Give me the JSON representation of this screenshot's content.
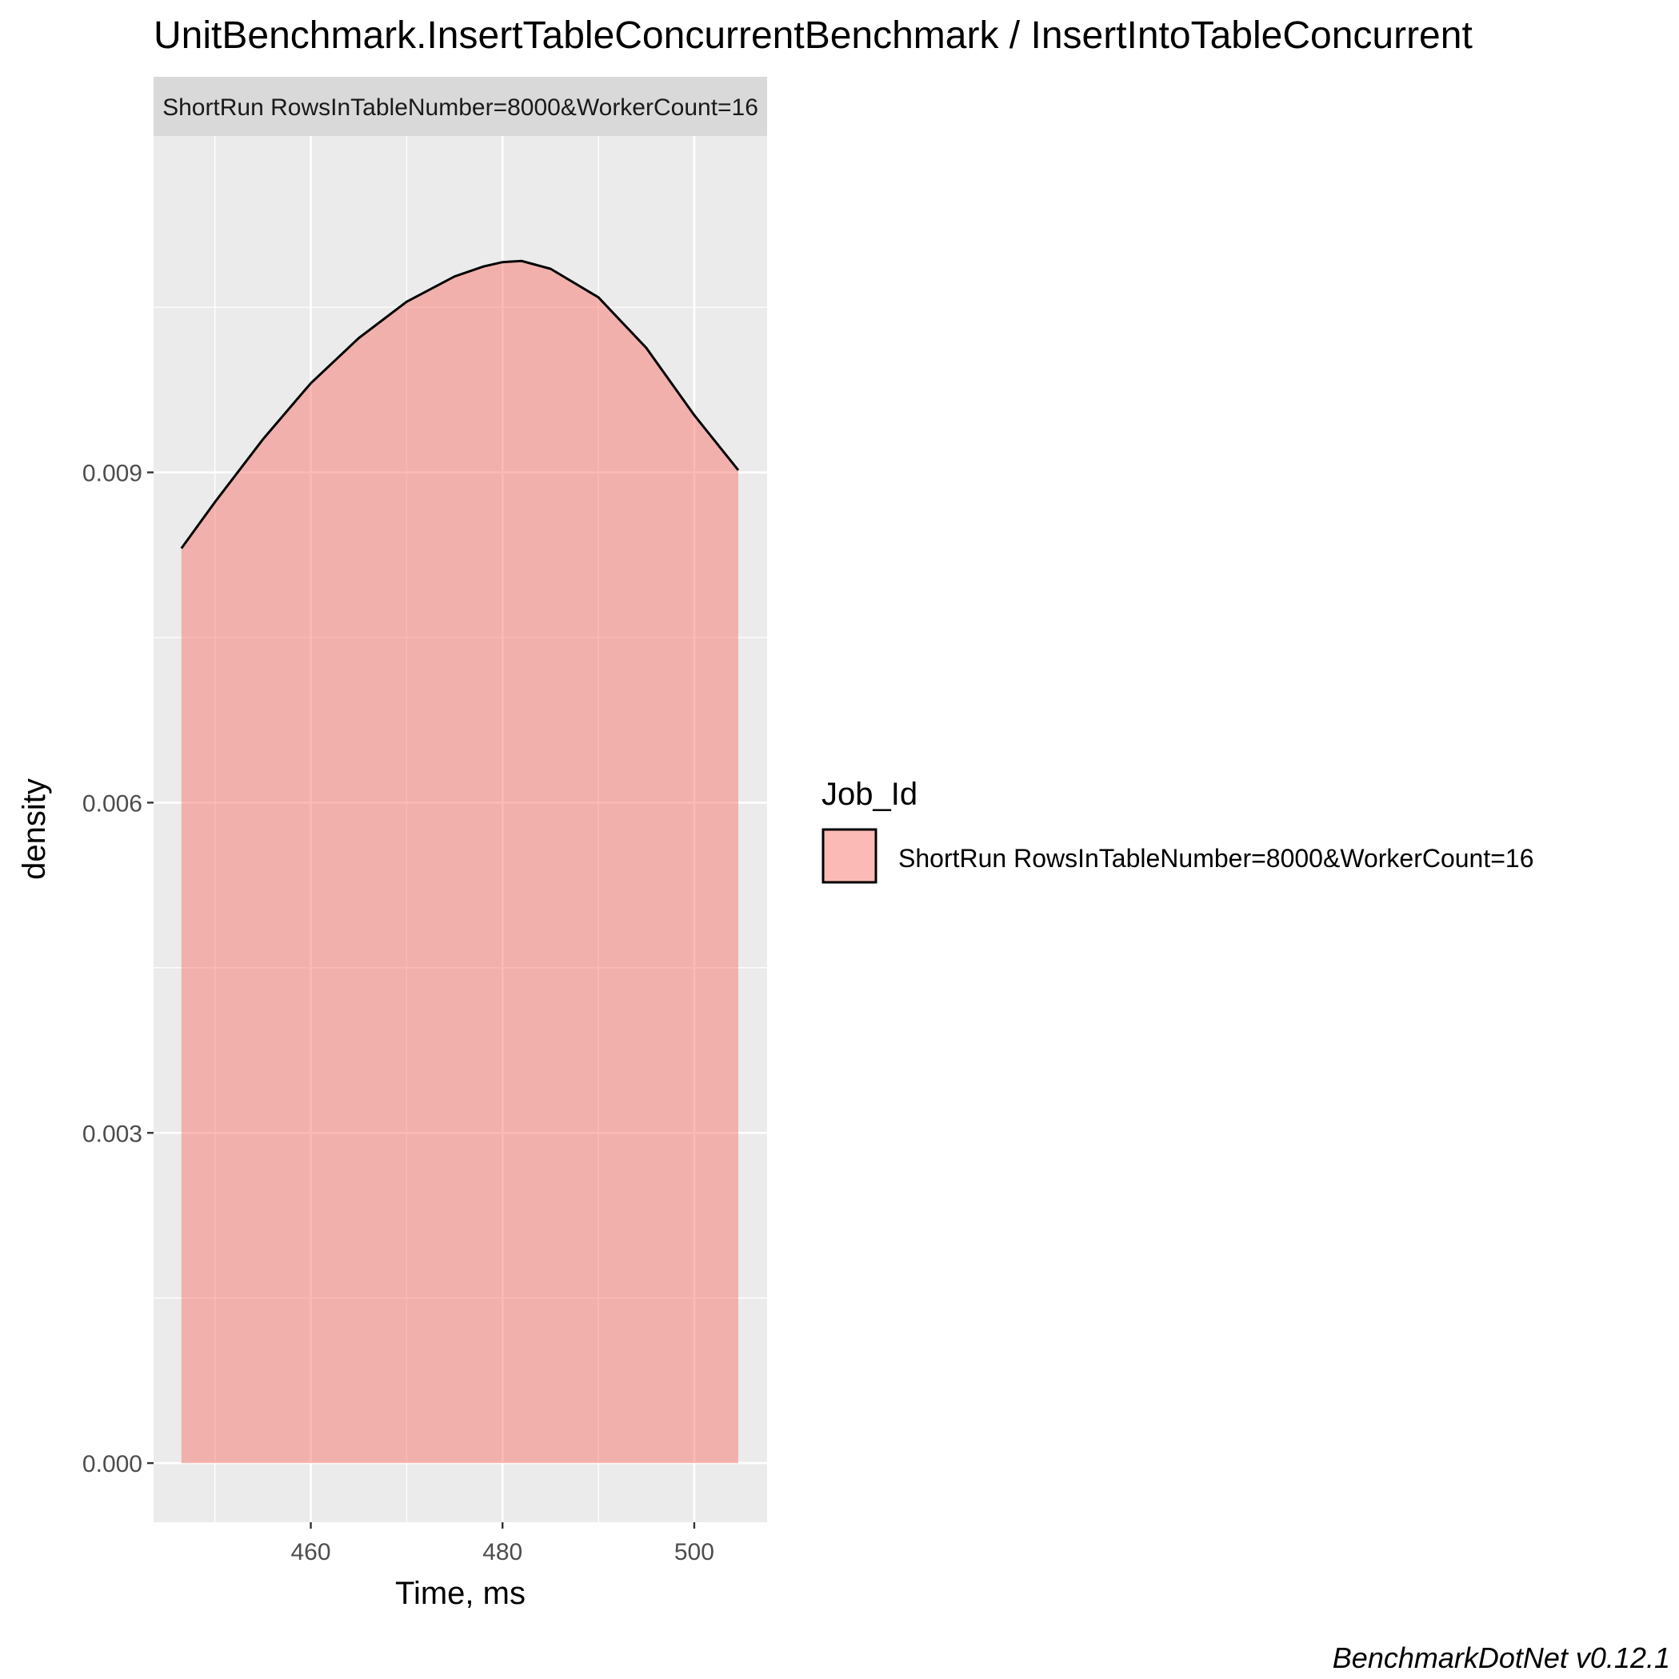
{
  "chart_data": {
    "type": "area",
    "title": "UnitBenchmark.InsertTableConcurrentBenchmark / InsertIntoTableConcurrent",
    "facet_label": "ShortRun RowsInTableNumber=8000&WorkerCount=16",
    "xlabel": "Time, ms",
    "ylabel": "density",
    "xlim": [
      443.6,
      507.6
    ],
    "ylim": [
      -0.000537,
      0.012056
    ],
    "x_ticks": [
      460,
      480,
      500
    ],
    "x_tick_labels": [
      "460",
      "480",
      "500"
    ],
    "y_ticks": [
      0.0,
      0.003,
      0.006,
      0.009
    ],
    "y_tick_labels": [
      "0.000",
      "0.003",
      "0.006",
      "0.009"
    ],
    "grid": true,
    "legend": {
      "title": "Job_Id",
      "position": "right",
      "entries": [
        "ShortRun RowsInTableNumber=8000&WorkerCount=16"
      ]
    },
    "series": [
      {
        "name": "ShortRun RowsInTableNumber=8000&WorkerCount=16",
        "color": "#F8766D",
        "x": [
          446.5,
          450,
          455,
          460,
          465,
          470,
          475,
          478,
          480,
          482,
          485,
          490,
          495,
          500,
          504.6
        ],
        "y": [
          0.00831,
          0.00873,
          0.0093,
          0.00981,
          0.01022,
          0.01055,
          0.01078,
          0.01087,
          0.01091,
          0.01092,
          0.01085,
          0.01059,
          0.01013,
          0.00952,
          0.00902
        ]
      }
    ],
    "caption": "BenchmarkDotNet v0.12.1"
  }
}
